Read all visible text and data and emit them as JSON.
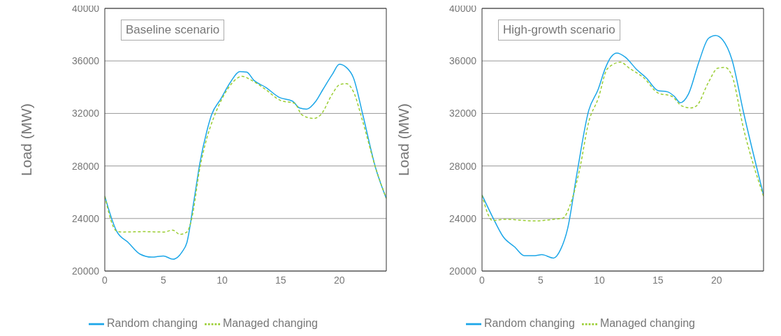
{
  "chart_data": [
    {
      "type": "line",
      "title": "Baseline scenario",
      "ylabel": "Load (MW)",
      "xlim": [
        0,
        24
      ],
      "xticks": [
        0,
        5,
        10,
        15,
        20
      ],
      "ylim": [
        20000,
        40000
      ],
      "yticks": [
        20000,
        24000,
        28000,
        32000,
        36000,
        40000
      ],
      "grid": "y",
      "legend": "bottom",
      "marker": "none",
      "series": [
        {
          "name": "Random changing",
          "color": "#1ba6e8",
          "line_style": "solid",
          "x": [
            0,
            1.0,
            2.0,
            3.0,
            4.0,
            5.0,
            5.8,
            6.6,
            7.0,
            7.6,
            8.1,
            8.7,
            9.1,
            9.9,
            10.7,
            11.5,
            12.1,
            12.7,
            13.7,
            14.9,
            16.0,
            16.6,
            17.2,
            18.0,
            18.6,
            19.4,
            20.0,
            20.6,
            21.2,
            22.0,
            23.1,
            24
          ],
          "values": [
            25700,
            23050,
            22170,
            21290,
            21060,
            21150,
            20900,
            21470,
            22170,
            25350,
            28180,
            30650,
            31890,
            33120,
            34360,
            35190,
            35150,
            34530,
            34000,
            33210,
            32940,
            32420,
            32330,
            32940,
            33830,
            34980,
            35740,
            35500,
            34710,
            31890,
            27820,
            25530
          ]
        },
        {
          "name": "Managed changing",
          "color": "#9acd32",
          "line_style": "dashed",
          "x": [
            0,
            1.0,
            1.5,
            3.4,
            5.0,
            5.8,
            6.4,
            7.0,
            7.4,
            8.1,
            8.7,
            9.3,
            10.1,
            10.9,
            11.7,
            12.5,
            13.7,
            15.0,
            16.2,
            16.8,
            17.8,
            18.4,
            19.4,
            20.0,
            20.6,
            21.2,
            22.0,
            23.1,
            24
          ],
          "values": [
            25700,
            23050,
            22970,
            23000,
            22970,
            23110,
            22790,
            22970,
            23940,
            27820,
            30120,
            31710,
            33300,
            34360,
            34830,
            34530,
            33830,
            32980,
            32770,
            31890,
            31620,
            31890,
            33480,
            34180,
            34270,
            33650,
            31360,
            27820,
            25530
          ]
        }
      ]
    },
    {
      "type": "line",
      "title": "High-growth scenario",
      "ylabel": "Load (MW)",
      "xlim": [
        0,
        24
      ],
      "xticks": [
        0,
        5,
        10,
        15,
        20
      ],
      "ylim": [
        20000,
        40000
      ],
      "yticks": [
        20000,
        24000,
        28000,
        32000,
        36000,
        40000
      ],
      "grid": "y",
      "legend": "bottom",
      "marker": "none",
      "series": [
        {
          "name": "Random changing",
          "color": "#1ba6e8",
          "line_style": "solid",
          "x": [
            0,
            0.9,
            1.8,
            2.8,
            3.6,
            4.5,
            5.1,
            6.1,
            6.7,
            7.3,
            8.1,
            9.1,
            9.9,
            10.5,
            11.0,
            11.5,
            12.2,
            13.2,
            14.0,
            15.0,
            15.8,
            16.4,
            16.9,
            17.6,
            18.5,
            19.3,
            19.9,
            20.5,
            21.3,
            22.3,
            24
          ],
          "values": [
            25790,
            24120,
            22620,
            21820,
            21170,
            21170,
            21250,
            20990,
            21640,
            23240,
            27470,
            32240,
            33830,
            35420,
            36300,
            36600,
            36300,
            35330,
            34710,
            33740,
            33650,
            33300,
            32820,
            33480,
            35950,
            37710,
            37940,
            37620,
            36120,
            32060,
            25790
          ]
        },
        {
          "name": "Managed changing",
          "color": "#9acd32",
          "line_style": "dashed",
          "x": [
            0,
            0.9,
            2.0,
            4.5,
            6.1,
            6.9,
            7.5,
            8.3,
            9.1,
            9.9,
            10.7,
            11.8,
            12.6,
            13.8,
            15.0,
            16.2,
            17.0,
            17.8,
            18.3,
            19.3,
            20.1,
            20.7,
            21.3,
            22.3,
            24
          ],
          "values": [
            25790,
            23850,
            23940,
            23810,
            23940,
            24030,
            25000,
            27650,
            31360,
            33120,
            35420,
            35900,
            35420,
            34710,
            33560,
            33300,
            32590,
            32420,
            32590,
            34360,
            35450,
            35510,
            34890,
            30830,
            25700
          ]
        }
      ]
    }
  ]
}
